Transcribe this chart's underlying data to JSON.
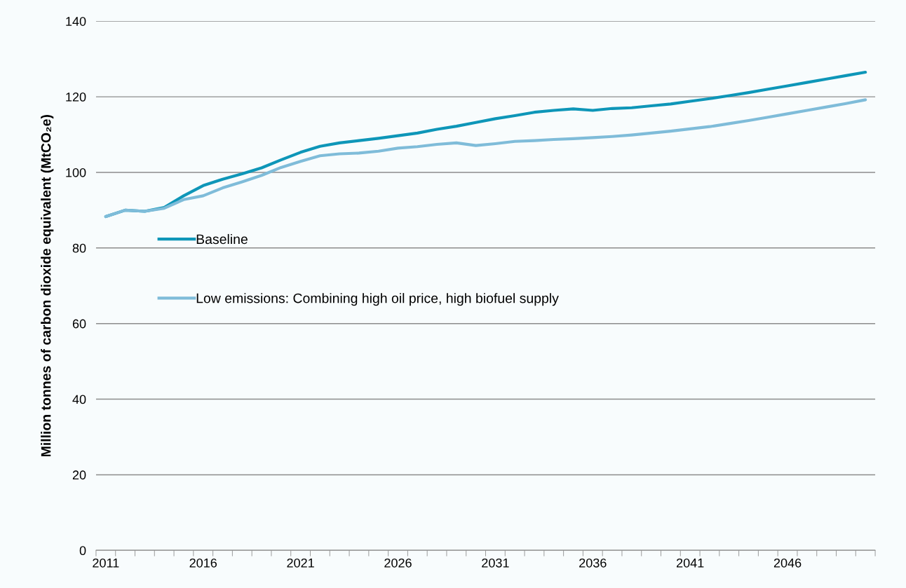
{
  "chart_data": {
    "type": "line",
    "ylabel": "Million tonnes of carbon dioxide equivalent (MtCO₂e)",
    "categories": [
      "2011",
      null,
      null,
      null,
      null,
      "2016",
      null,
      null,
      null,
      null,
      "2021",
      null,
      null,
      null,
      null,
      "2026",
      null,
      null,
      null,
      null,
      "2031",
      null,
      null,
      null,
      null,
      "2036",
      null,
      null,
      null,
      null,
      "2041",
      null,
      null,
      null,
      null,
      "2046",
      null,
      null,
      null,
      null
    ],
    "series": [
      {
        "name": "Baseline",
        "color": "#0e96b8",
        "values": [
          88.3,
          90,
          89.7,
          90.7,
          93.8,
          96.5,
          98.2,
          99.6,
          101.2,
          103.3,
          105.3,
          106.9,
          107.8,
          108.4,
          109,
          109.7,
          110.4,
          111.4,
          112.2,
          113.2,
          114.2,
          115.0,
          115.9,
          116.4,
          116.8,
          116.4,
          116.9,
          117.1,
          117.6,
          118.1,
          118.8,
          119.5,
          120.3,
          121.1,
          122.0,
          122.9,
          123.8,
          124.7,
          125.6,
          126.5
        ]
      },
      {
        "name": "Low emissions: Combining high oil price, high biofuel supply",
        "color": "#7fbcd9",
        "values": [
          88.3,
          90,
          89.7,
          90.5,
          92.8,
          93.8,
          95.9,
          97.5,
          99.2,
          101.3,
          102.9,
          104.4,
          104.9,
          105.1,
          105.6,
          106.4,
          106.8,
          107.4,
          107.8,
          107.1,
          107.6,
          108.2,
          108.4,
          108.7,
          108.9,
          109.2,
          109.5,
          109.9,
          110.4,
          110.9,
          111.5,
          112.1,
          112.9,
          113.7,
          114.6,
          115.5,
          116.4,
          117.3,
          118.2,
          119.2
        ]
      }
    ],
    "ylim": [
      0,
      140
    ],
    "yticks": [
      0,
      20,
      40,
      60,
      80,
      100,
      120,
      140
    ],
    "grid": "y",
    "legend": "left",
    "marker": "none",
    "line_style": "solid"
  }
}
